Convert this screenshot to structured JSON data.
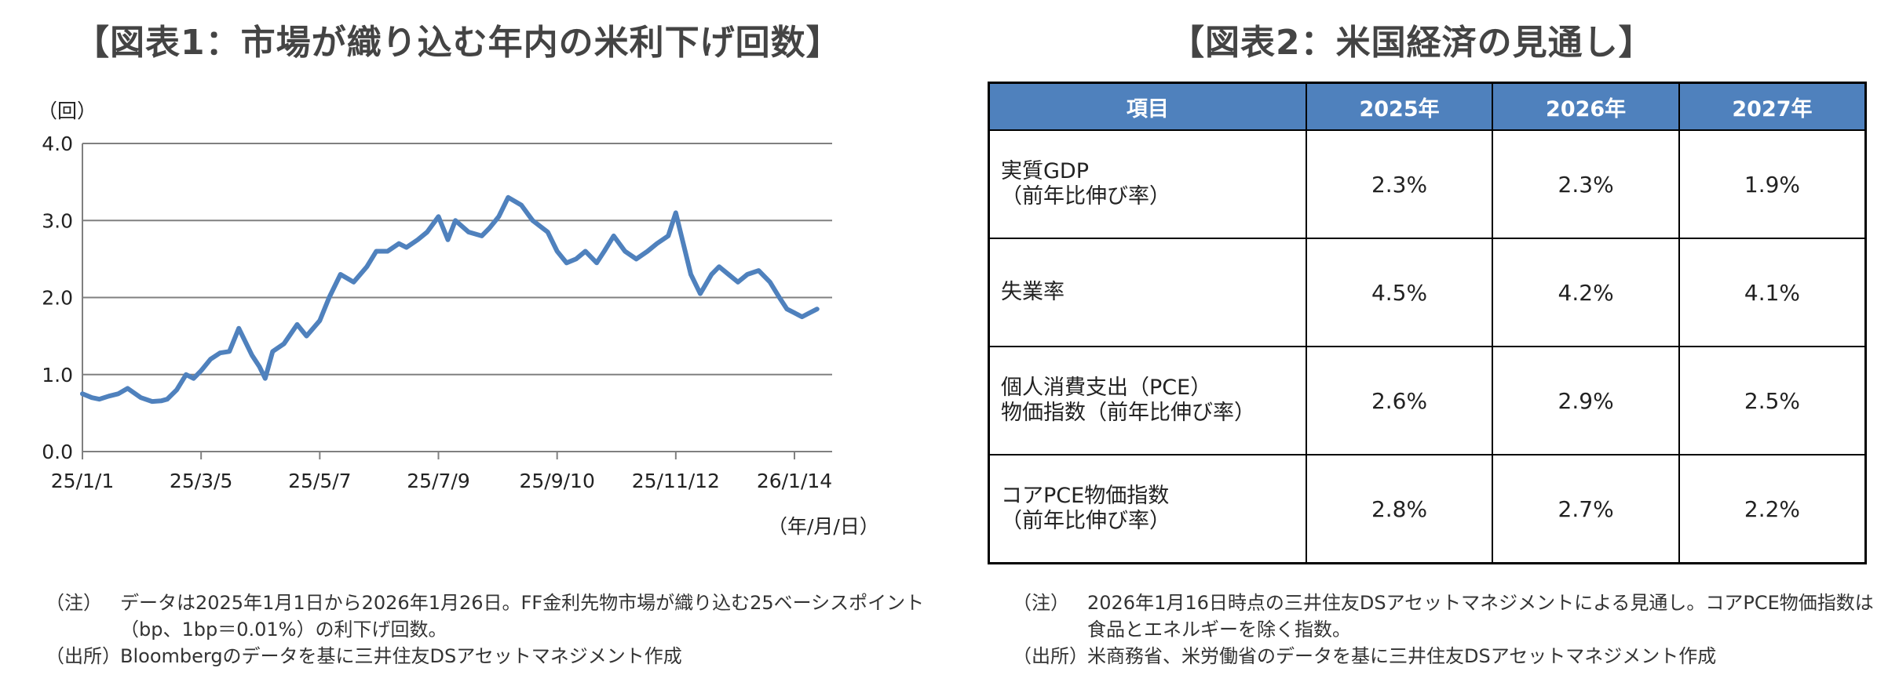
{
  "figure1": {
    "title": "【図表1：市場が織り込む年内の米利下げ回数】",
    "notes": [
      {
        "label": "（注）",
        "text": "データは2025年1月1日から2026年1月26日。FF金利先物市場が織り込む25ベーシスポイント（bp、1bp＝0.01%）の利下げ回数。"
      },
      {
        "label": "（出所）",
        "text": "Bloombergのデータを基に三井住友DSアセットマネジメント作成"
      }
    ]
  },
  "chart_data": {
    "type": "line",
    "title": "【図表1：市場が織り込む年内の米利下げ回数】",
    "ylabel": "（回）",
    "xlabel": "（年/月/日）",
    "ylim": [
      0.0,
      4.0
    ],
    "yticks": [
      "0.0",
      "1.0",
      "2.0",
      "3.0",
      "4.0"
    ],
    "xticks": [
      "25/1/1",
      "25/3/5",
      "25/5/7",
      "25/7/9",
      "25/9/10",
      "25/11/12",
      "26/1/14"
    ],
    "grid": true,
    "line_color": "#4f81bd",
    "series": [
      {
        "x": [
          "2025-01-01",
          "2025-01-06",
          "2025-01-10",
          "2025-01-15",
          "2025-01-20",
          "2025-01-25",
          "2025-02-01",
          "2025-02-07",
          "2025-02-12",
          "2025-02-15",
          "2025-02-20",
          "2025-02-25",
          "2025-03-01",
          "2025-03-05",
          "2025-03-10",
          "2025-03-15",
          "2025-03-20",
          "2025-03-25",
          "2025-04-01",
          "2025-04-05",
          "2025-04-08",
          "2025-04-12",
          "2025-04-18",
          "2025-04-25",
          "2025-04-30",
          "2025-05-07",
          "2025-05-12",
          "2025-05-18",
          "2025-05-25",
          "2025-06-01",
          "2025-06-06",
          "2025-06-12",
          "2025-06-18",
          "2025-06-22",
          "2025-06-28",
          "2025-07-03",
          "2025-07-09",
          "2025-07-14",
          "2025-07-18",
          "2025-07-25",
          "2025-08-01",
          "2025-08-05",
          "2025-08-10",
          "2025-08-15",
          "2025-08-22",
          "2025-08-28",
          "2025-09-05",
          "2025-09-10",
          "2025-09-15",
          "2025-09-20",
          "2025-09-25",
          "2025-10-01",
          "2025-10-05",
          "2025-10-10",
          "2025-10-16",
          "2025-10-22",
          "2025-10-28",
          "2025-11-02",
          "2025-11-08",
          "2025-11-12",
          "2025-11-16",
          "2025-11-20",
          "2025-11-25",
          "2025-12-01",
          "2025-12-05",
          "2025-12-10",
          "2025-12-15",
          "2025-12-20",
          "2025-12-26",
          "2026-01-01",
          "2026-01-06",
          "2026-01-10",
          "2026-01-14",
          "2026-01-18",
          "2026-01-22",
          "2026-01-26"
        ],
        "values": [
          0.75,
          0.7,
          0.68,
          0.72,
          0.75,
          0.82,
          0.7,
          0.65,
          0.66,
          0.68,
          0.8,
          1.0,
          0.95,
          1.05,
          1.2,
          1.28,
          1.3,
          1.6,
          1.25,
          1.1,
          0.95,
          1.3,
          1.4,
          1.65,
          1.5,
          1.7,
          2.0,
          2.3,
          2.2,
          2.4,
          2.6,
          2.6,
          2.7,
          2.65,
          2.75,
          2.85,
          3.05,
          2.75,
          3.0,
          2.85,
          2.8,
          2.9,
          3.05,
          3.3,
          3.2,
          3.0,
          2.85,
          2.6,
          2.45,
          2.5,
          2.6,
          2.45,
          2.6,
          2.8,
          2.6,
          2.5,
          2.6,
          2.7,
          2.8,
          3.1,
          2.7,
          2.3,
          2.05,
          2.3,
          2.4,
          2.3,
          2.2,
          2.3,
          2.35,
          2.2,
          2.0,
          1.85,
          1.8,
          1.75,
          1.8,
          1.85
        ]
      }
    ]
  },
  "figure2": {
    "title": "【図表2：米国経済の見通し】",
    "header": [
      "項目",
      "2025年",
      "2026年",
      "2027年"
    ],
    "rows": [
      {
        "item1": "実質GDP",
        "item2": "（前年比伸び率）",
        "v": [
          "2.3%",
          "2.3%",
          "1.9%"
        ]
      },
      {
        "item1": "失業率",
        "item2": "",
        "v": [
          "4.5%",
          "4.2%",
          "4.1%"
        ]
      },
      {
        "item1": "個人消費支出（PCE）",
        "item2": "物価指数（前年比伸び率）",
        "v": [
          "2.6%",
          "2.9%",
          "2.5%"
        ]
      },
      {
        "item1": "コアPCE物価指数",
        "item2": "（前年比伸び率）",
        "v": [
          "2.8%",
          "2.7%",
          "2.2%"
        ]
      }
    ],
    "header_color": "#4f81bd",
    "notes": [
      {
        "label": "（注）",
        "text": "2026年1月16日時点の三井住友DSアセットマネジメントによる見通し。コアPCE物価指数は食品とエネルギーを除く指数。"
      },
      {
        "label": "（出所）",
        "text": "米商務省、米労働省のデータを基に三井住友DSアセットマネジメント作成"
      }
    ]
  }
}
